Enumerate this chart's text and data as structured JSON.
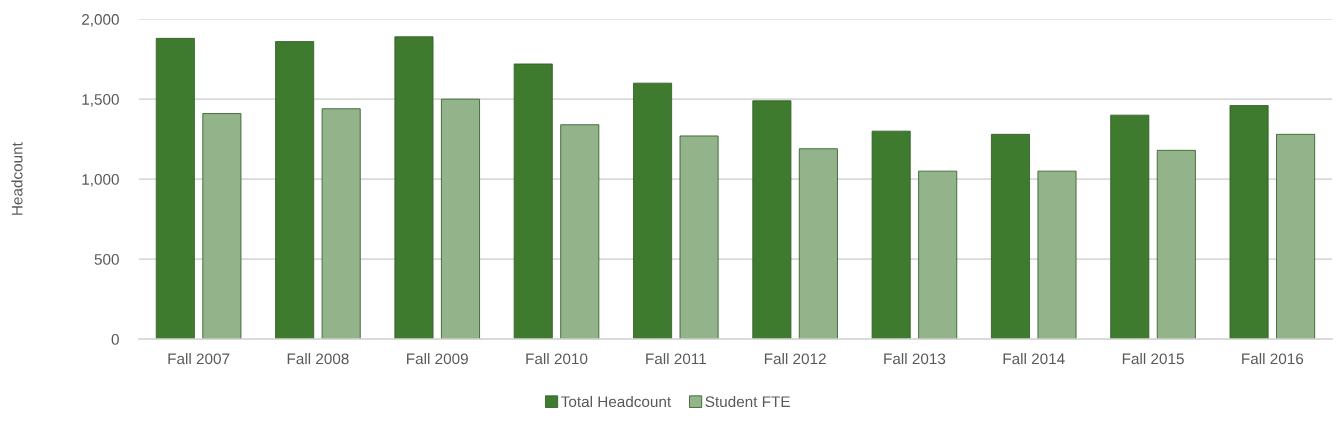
{
  "chart_data": {
    "type": "bar",
    "ylabel": "Headcount",
    "categories": [
      "Fall 2007",
      "Fall 2008",
      "Fall 2009",
      "Fall 2010",
      "Fall 2011",
      "Fall 2012",
      "Fall 2013",
      "Fall 2014",
      "Fall 2015",
      "Fall 2016"
    ],
    "series": [
      {
        "name": "Total Headcount",
        "color": "#3e7b2f",
        "values": [
          1880,
          1860,
          1890,
          1720,
          1600,
          1490,
          1300,
          1280,
          1400,
          1460
        ]
      },
      {
        "name": "Student FTE",
        "color": "#93b38b",
        "values": [
          1410,
          1440,
          1500,
          1340,
          1270,
          1190,
          1050,
          1050,
          1180,
          1280
        ]
      }
    ],
    "ylim": [
      0,
      2000
    ],
    "yticks": [
      0,
      500,
      {
        "value": 1000,
        "label": "1,000"
      },
      {
        "value": 1500,
        "label": "1,500"
      },
      {
        "value": 2000,
        "label": "2,000"
      }
    ],
    "grid": "y",
    "legend": "bottom"
  }
}
